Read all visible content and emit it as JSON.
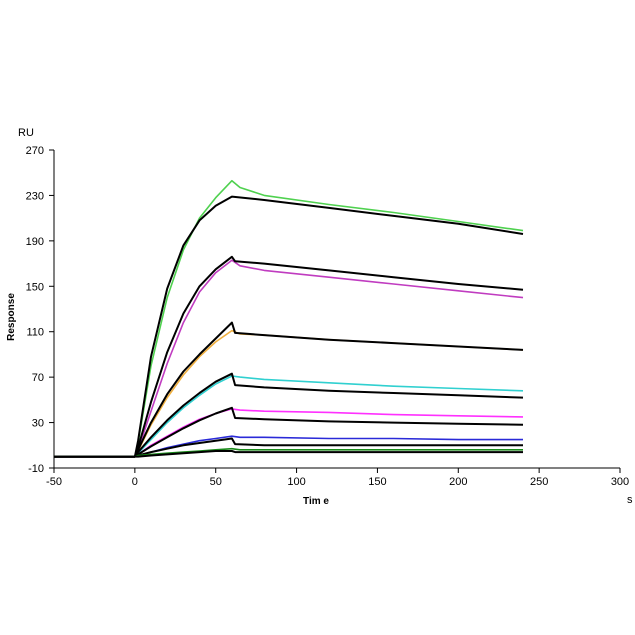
{
  "chart_data": {
    "type": "line",
    "title": "",
    "xlabel": "Tim e",
    "ylabel": "Response",
    "x_unit": "s",
    "y_unit": "RU",
    "xlim": [
      -50,
      300
    ],
    "ylim": [
      -10,
      270
    ],
    "xticks": [
      -50,
      0,
      50,
      100,
      150,
      200,
      250,
      300
    ],
    "yticks": [
      -10,
      30,
      70,
      110,
      150,
      190,
      230,
      270
    ],
    "grid": false,
    "legend": "none",
    "series": [
      {
        "color": "#4fd14f",
        "points": [
          [
            -50,
            0
          ],
          [
            0,
            0
          ],
          [
            2,
            12
          ],
          [
            10,
            80
          ],
          [
            20,
            140
          ],
          [
            30,
            182
          ],
          [
            40,
            210
          ],
          [
            50,
            228
          ],
          [
            60,
            243
          ],
          [
            65,
            237
          ],
          [
            80,
            230
          ],
          [
            120,
            222
          ],
          [
            160,
            215
          ],
          [
            200,
            207
          ],
          [
            240,
            199
          ]
        ]
      },
      {
        "color": "#000000",
        "points": [
          [
            -50,
            0
          ],
          [
            0,
            0
          ],
          [
            2,
            14
          ],
          [
            10,
            88
          ],
          [
            20,
            148
          ],
          [
            30,
            186
          ],
          [
            40,
            208
          ],
          [
            50,
            221
          ],
          [
            60,
            229
          ],
          [
            80,
            226
          ],
          [
            120,
            219
          ],
          [
            160,
            212
          ],
          [
            200,
            205
          ],
          [
            240,
            196
          ]
        ]
      },
      {
        "color": "#c03cc0",
        "points": [
          [
            -50,
            0
          ],
          [
            0,
            0
          ],
          [
            2,
            6
          ],
          [
            10,
            40
          ],
          [
            20,
            82
          ],
          [
            30,
            118
          ],
          [
            40,
            145
          ],
          [
            50,
            162
          ],
          [
            60,
            173
          ],
          [
            65,
            168
          ],
          [
            80,
            164
          ],
          [
            120,
            158
          ],
          [
            160,
            152
          ],
          [
            200,
            146
          ],
          [
            240,
            140
          ]
        ]
      },
      {
        "color": "#000000",
        "points": [
          [
            -50,
            0
          ],
          [
            0,
            0
          ],
          [
            2,
            8
          ],
          [
            10,
            48
          ],
          [
            20,
            92
          ],
          [
            30,
            126
          ],
          [
            40,
            150
          ],
          [
            50,
            165
          ],
          [
            60,
            176
          ],
          [
            62,
            172
          ],
          [
            80,
            170
          ],
          [
            120,
            164
          ],
          [
            160,
            158
          ],
          [
            200,
            152
          ],
          [
            240,
            147
          ]
        ]
      },
      {
        "color": "#f0b040",
        "points": [
          [
            -50,
            0
          ],
          [
            0,
            0
          ],
          [
            2,
            5
          ],
          [
            10,
            28
          ],
          [
            20,
            52
          ],
          [
            30,
            72
          ],
          [
            40,
            88
          ],
          [
            50,
            101
          ],
          [
            60,
            111
          ],
          [
            65,
            108
          ],
          [
            80,
            107
          ],
          [
            120,
            103
          ],
          [
            160,
            100
          ],
          [
            200,
            97
          ],
          [
            240,
            94
          ]
        ]
      },
      {
        "color": "#000000",
        "points": [
          [
            -50,
            0
          ],
          [
            0,
            0
          ],
          [
            2,
            6
          ],
          [
            10,
            30
          ],
          [
            20,
            55
          ],
          [
            30,
            75
          ],
          [
            40,
            90
          ],
          [
            50,
            104
          ],
          [
            60,
            118
          ],
          [
            62,
            109
          ],
          [
            80,
            107
          ],
          [
            120,
            103
          ],
          [
            160,
            100
          ],
          [
            200,
            97
          ],
          [
            240,
            94
          ]
        ]
      },
      {
        "color": "#30d0d0",
        "points": [
          [
            -50,
            0
          ],
          [
            0,
            0
          ],
          [
            2,
            3
          ],
          [
            10,
            15
          ],
          [
            20,
            30
          ],
          [
            30,
            43
          ],
          [
            40,
            54
          ],
          [
            50,
            64
          ],
          [
            60,
            71
          ],
          [
            65,
            70
          ],
          [
            80,
            68
          ],
          [
            120,
            65
          ],
          [
            160,
            62
          ],
          [
            200,
            60
          ],
          [
            240,
            58
          ]
        ]
      },
      {
        "color": "#000000",
        "points": [
          [
            -50,
            0
          ],
          [
            0,
            0
          ],
          [
            2,
            4
          ],
          [
            10,
            17
          ],
          [
            20,
            32
          ],
          [
            30,
            45
          ],
          [
            40,
            56
          ],
          [
            50,
            66
          ],
          [
            60,
            73
          ],
          [
            62,
            63
          ],
          [
            80,
            61
          ],
          [
            120,
            58
          ],
          [
            160,
            56
          ],
          [
            200,
            54
          ],
          [
            240,
            52
          ]
        ]
      },
      {
        "color": "#ff30ff",
        "points": [
          [
            -50,
            0
          ],
          [
            0,
            0
          ],
          [
            2,
            2
          ],
          [
            10,
            10
          ],
          [
            20,
            18
          ],
          [
            30,
            26
          ],
          [
            40,
            33
          ],
          [
            50,
            38
          ],
          [
            60,
            42
          ],
          [
            65,
            41
          ],
          [
            80,
            40
          ],
          [
            120,
            39
          ],
          [
            160,
            37
          ],
          [
            200,
            36
          ],
          [
            240,
            35
          ]
        ]
      },
      {
        "color": "#000000",
        "points": [
          [
            -50,
            0
          ],
          [
            0,
            0
          ],
          [
            2,
            2
          ],
          [
            10,
            9
          ],
          [
            20,
            17
          ],
          [
            30,
            25
          ],
          [
            40,
            32
          ],
          [
            50,
            38
          ],
          [
            60,
            43
          ],
          [
            62,
            34
          ],
          [
            80,
            33
          ],
          [
            120,
            31
          ],
          [
            160,
            30
          ],
          [
            200,
            29
          ],
          [
            240,
            28
          ]
        ]
      },
      {
        "color": "#2a2ad8",
        "points": [
          [
            -50,
            0
          ],
          [
            0,
            0
          ],
          [
            2,
            1
          ],
          [
            10,
            4
          ],
          [
            20,
            8
          ],
          [
            30,
            11
          ],
          [
            40,
            14
          ],
          [
            50,
            16
          ],
          [
            60,
            18
          ],
          [
            65,
            17
          ],
          [
            80,
            17
          ],
          [
            120,
            16
          ],
          [
            160,
            16
          ],
          [
            200,
            15
          ],
          [
            240,
            15
          ]
        ]
      },
      {
        "color": "#000000",
        "points": [
          [
            -50,
            0
          ],
          [
            0,
            0
          ],
          [
            2,
            1
          ],
          [
            10,
            4
          ],
          [
            20,
            7
          ],
          [
            30,
            10
          ],
          [
            40,
            12
          ],
          [
            50,
            14
          ],
          [
            60,
            16
          ],
          [
            62,
            11
          ],
          [
            80,
            10
          ],
          [
            120,
            10
          ],
          [
            160,
            10
          ],
          [
            200,
            10
          ],
          [
            240,
            10
          ]
        ]
      },
      {
        "color": "#1a8a1a",
        "points": [
          [
            -50,
            0
          ],
          [
            0,
            0
          ],
          [
            2,
            1
          ],
          [
            10,
            2
          ],
          [
            20,
            3
          ],
          [
            30,
            4
          ],
          [
            40,
            5
          ],
          [
            50,
            6
          ],
          [
            60,
            7
          ],
          [
            65,
            6
          ],
          [
            80,
            6
          ],
          [
            120,
            6
          ],
          [
            160,
            6
          ],
          [
            200,
            6
          ],
          [
            240,
            6
          ]
        ]
      },
      {
        "color": "#000000",
        "points": [
          [
            -50,
            0
          ],
          [
            0,
            0
          ],
          [
            2,
            0
          ],
          [
            10,
            1
          ],
          [
            20,
            2
          ],
          [
            30,
            3
          ],
          [
            40,
            4
          ],
          [
            50,
            5
          ],
          [
            60,
            5
          ],
          [
            62,
            4
          ],
          [
            80,
            4
          ],
          [
            120,
            4
          ],
          [
            160,
            4
          ],
          [
            200,
            4
          ],
          [
            240,
            4
          ]
        ]
      }
    ]
  }
}
